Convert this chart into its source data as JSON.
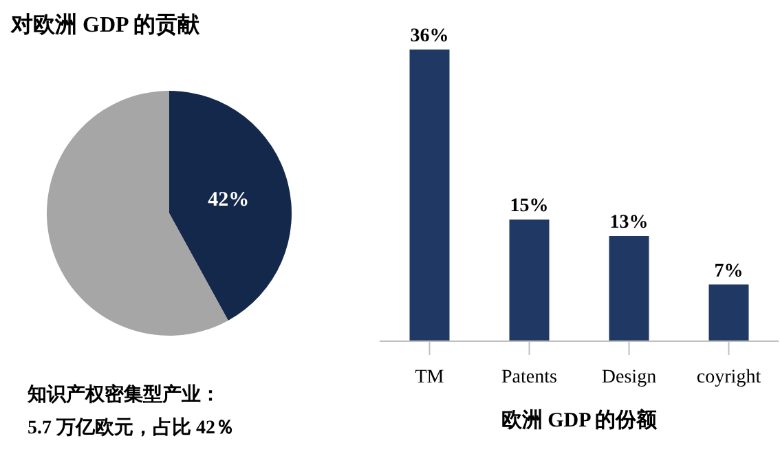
{
  "chart_data": [
    {
      "type": "pie",
      "title": "对欧洲 GDP 的贡献",
      "categories": [
        null,
        null
      ],
      "values": [
        42,
        58
      ],
      "colors": [
        "#14284b",
        "#a6a6a6"
      ],
      "value_labels": [
        "42%",
        null
      ],
      "annotations": [
        "知识产权密集型产业：",
        "5.7 万亿欧元，占比 42％"
      ]
    },
    {
      "type": "bar",
      "categories": [
        "TM",
        "Patents",
        "Design",
        "coyright"
      ],
      "values": [
        36,
        15,
        13,
        7
      ],
      "color": "#1f3864",
      "value_labels": [
        "36%",
        "15%",
        "13%",
        "7%"
      ],
      "xlabel": "欧洲 GDP 的份额"
    }
  ]
}
